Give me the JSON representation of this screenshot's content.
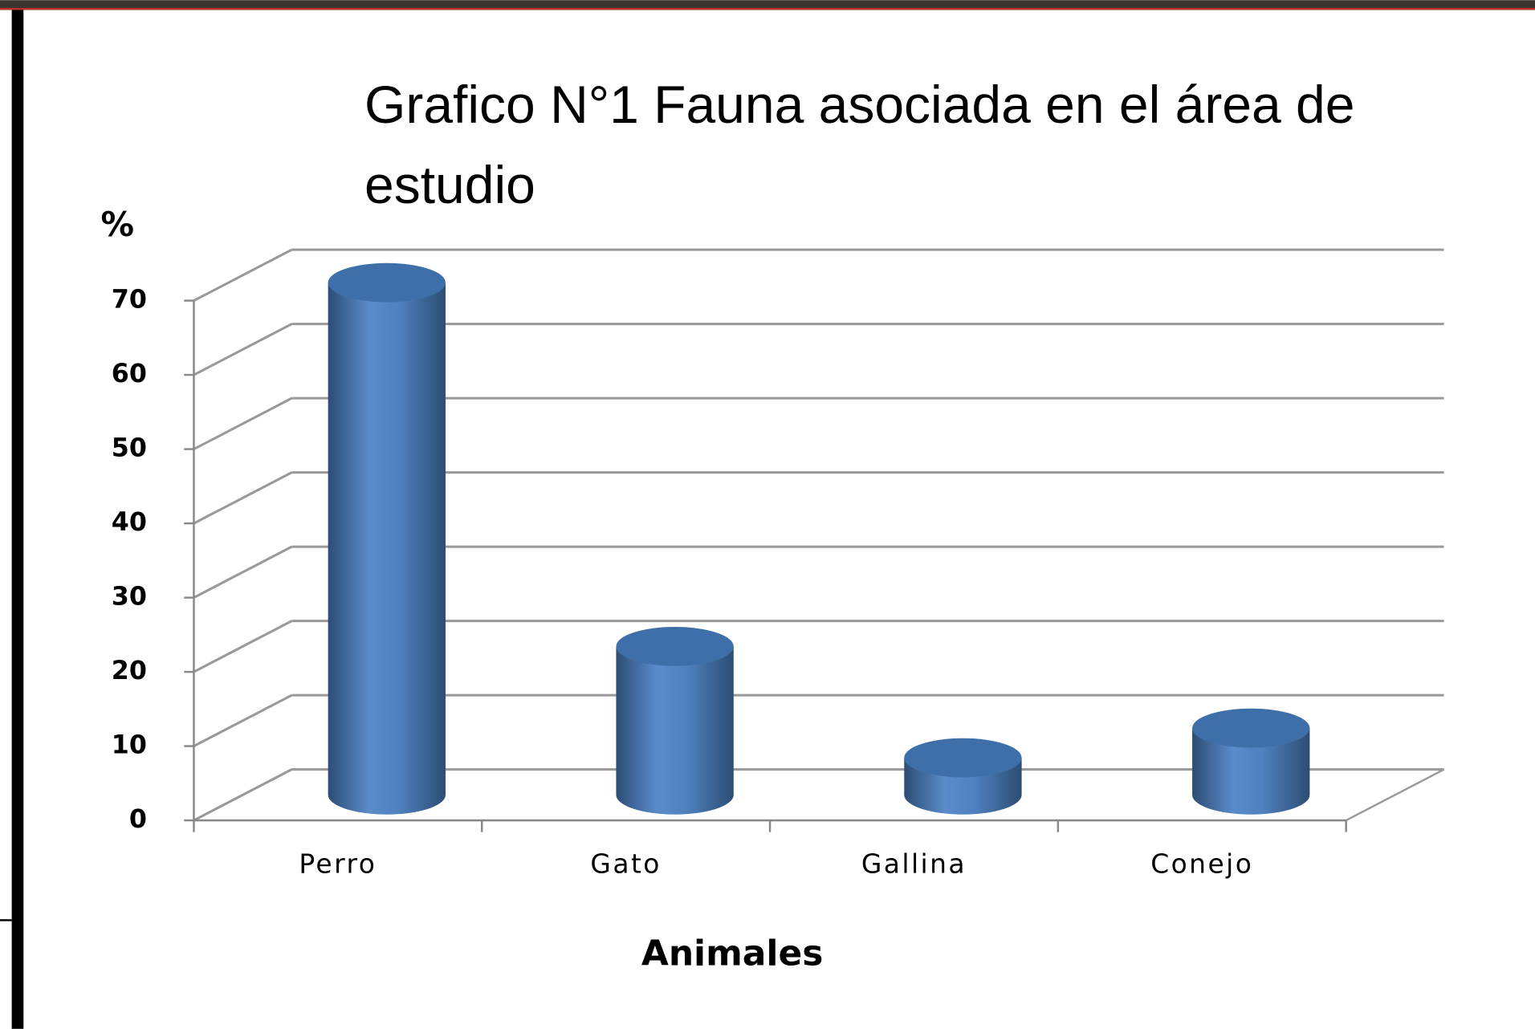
{
  "chart_data": {
    "type": "bar",
    "title": "Grafico N°1 Fauna asociada en el área de estudio",
    "y_label": "%",
    "x_label": "Animales",
    "categories": [
      "Perro",
      "Gato",
      "Gallina",
      "Conejo"
    ],
    "values": [
      69,
      20,
      5,
      9
    ],
    "color": "#4f81bd",
    "ylim": [
      0,
      70
    ],
    "yticks": [
      0,
      10,
      20,
      30,
      40,
      50,
      60,
      70
    ],
    "grid": true
  }
}
